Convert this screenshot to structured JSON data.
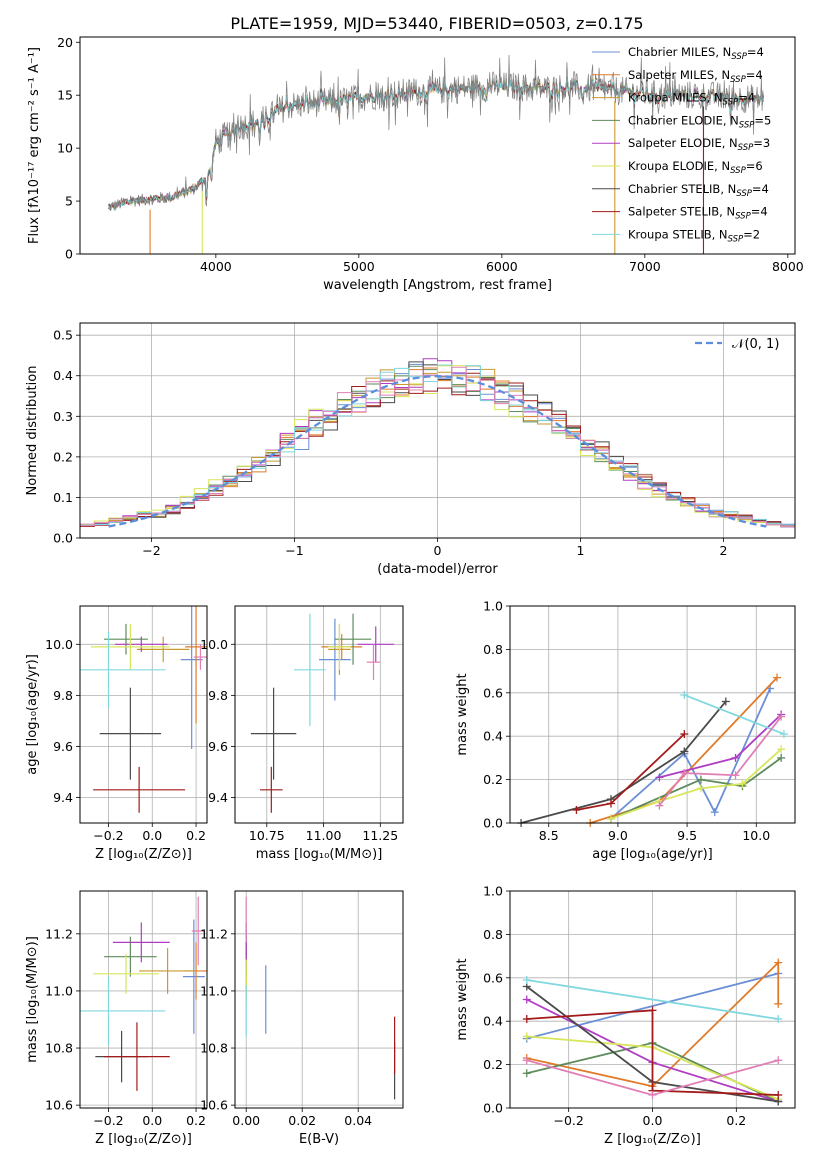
{
  "figure_title": "PLATE=1959, MJD=53440, FIBERID=0503, z=0.175",
  "colors": {
    "Chabrier MILES": "#6b8fd6",
    "Salpeter MILES": "#e07b2a",
    "Kroupa MILES": "#c99a2e",
    "Chabrier ELODIE": "#5e8c5a",
    "Salpeter ELODIE": "#b03cc4",
    "Kroupa ELODIE": "#d7e65a",
    "Chabrier STELIB": "#4a4a4a",
    "Salpeter STELIB": "#a31a1a",
    "Kroupa STELIB": "#80d8df",
    "pink": "#e07fb6",
    "normal": "#5b8fdc",
    "grid": "#b0b0b0",
    "spectrum_gray": "#808080"
  },
  "chart_data": [
    {
      "id": "spectrum",
      "type": "line",
      "xlabel": "wavelength [Angstrom, rest frame]",
      "ylabel": "Flux [fλ10⁻¹⁷ erg cm⁻² s⁻¹ A⁻¹]",
      "xlim": [
        3050,
        8050
      ],
      "ylim": [
        0,
        20.5
      ],
      "xticks": [
        4000,
        5000,
        6000,
        7000,
        8000
      ],
      "yticks": [
        0,
        5,
        10,
        15,
        20
      ],
      "grid": false,
      "legend_position": "top-right",
      "legend": [
        {
          "label": "Chabrier MILES, N",
          "sub": "SSP",
          "suffix": "=4"
        },
        {
          "label": "Salpeter MILES, N",
          "sub": "SSP",
          "suffix": "=4"
        },
        {
          "label": "Kroupa MILES, N",
          "sub": "SSP",
          "suffix": "=4"
        },
        {
          "label": "Chabrier ELODIE, N",
          "sub": "SSP",
          "suffix": "=5"
        },
        {
          "label": "Salpeter ELODIE, N",
          "sub": "SSP",
          "suffix": "=3"
        },
        {
          "label": "Kroupa ELODIE, N",
          "sub": "SSP",
          "suffix": "=6"
        },
        {
          "label": "Chabrier STELIB, N",
          "sub": "SSP",
          "suffix": "=4"
        },
        {
          "label": "Salpeter STELIB, N",
          "sub": "SSP",
          "suffix": "=4"
        },
        {
          "label": "Kroupa STELIB, N",
          "sub": "SSP",
          "suffix": "=2"
        }
      ],
      "continuum": [
        [
          3250,
          4.4
        ],
        [
          3400,
          5.0
        ],
        [
          3550,
          5.2
        ],
        [
          3700,
          5.4
        ],
        [
          3850,
          6.2
        ],
        [
          3950,
          7.5
        ],
        [
          4000,
          10.5
        ],
        [
          4150,
          12.0
        ],
        [
          4300,
          12.5
        ],
        [
          4400,
          13.2
        ],
        [
          4500,
          14.0
        ],
        [
          4700,
          14.3
        ],
        [
          4900,
          14.5
        ],
        [
          5100,
          15.0
        ],
        [
          5300,
          15.2
        ],
        [
          5500,
          15.4
        ],
        [
          5700,
          15.6
        ],
        [
          5900,
          15.9
        ],
        [
          6100,
          15.8
        ],
        [
          6300,
          15.6
        ],
        [
          6500,
          15.7
        ],
        [
          6700,
          15.6
        ],
        [
          6900,
          15.3
        ],
        [
          7100,
          15.0
        ],
        [
          7300,
          15.0
        ],
        [
          7500,
          14.9
        ],
        [
          7700,
          14.7
        ],
        [
          7830,
          14.6
        ]
      ]
    },
    {
      "id": "residuals",
      "type": "histogram",
      "xlabel": "(data-model)/error",
      "ylabel": "Normed distribution",
      "xlim": [
        -2.5,
        2.5
      ],
      "ylim": [
        0,
        0.53
      ],
      "xticks": [
        -2,
        -1,
        0,
        1,
        2
      ],
      "yticks": [
        0.0,
        0.1,
        0.2,
        0.3,
        0.4,
        0.5
      ],
      "grid": true,
      "legend_position": "top-right",
      "legend": [
        "𝒩(0, 1)"
      ],
      "bin_width": 0.1,
      "gaussian": {
        "mu": 0,
        "sigma": 1,
        "x_range": [
          -2.3,
          2.3
        ]
      }
    },
    {
      "id": "age-Z",
      "type": "errorbar",
      "xlabel": "Z [log₁₀(Z/Z⊙)]",
      "ylabel": "age  [log₁₀(age/yr)]",
      "xlim": [
        -0.33,
        0.25
      ],
      "ylim": [
        9.3,
        10.15
      ],
      "xticks": [
        -0.2,
        0.0,
        0.2
      ],
      "yticks": [
        9.4,
        9.6,
        9.8,
        10.0
      ],
      "grid": true,
      "points": [
        {
          "c": "Chabrier MILES",
          "x": 0.18,
          "y": 9.94,
          "ex": 0.05,
          "ey": 0.35
        },
        {
          "c": "Salpeter MILES",
          "x": 0.2,
          "y": 9.99,
          "ex": 0.05,
          "ey": 0.3
        },
        {
          "c": "Kroupa MILES",
          "x": 0.05,
          "y": 9.98,
          "ex": 0.12,
          "ey": 0.05
        },
        {
          "c": "Chabrier ELODIE",
          "x": -0.12,
          "y": 10.02,
          "ex": 0.1,
          "ey": 0.06
        },
        {
          "c": "Salpeter ELODIE",
          "x": -0.05,
          "y": 10.0,
          "ex": 0.12,
          "ey": 0.03
        },
        {
          "c": "Kroupa ELODIE",
          "x": -0.1,
          "y": 9.99,
          "ex": 0.18,
          "ey": 0.09
        },
        {
          "c": "Chabrier STELIB",
          "x": -0.1,
          "y": 9.65,
          "ex": 0.14,
          "ey": 0.18
        },
        {
          "c": "Salpeter STELIB",
          "x": -0.06,
          "y": 9.43,
          "ex": 0.21,
          "ey": 0.09
        },
        {
          "c": "Kroupa STELIB",
          "x": -0.2,
          "y": 9.9,
          "ex": 0.26,
          "ey": 0.15
        },
        {
          "c": "pink",
          "x": 0.22,
          "y": 9.95,
          "ex": 0.03,
          "ey": 0.05
        }
      ]
    },
    {
      "id": "age-mass",
      "type": "errorbar",
      "xlabel": "mass [log₁₀(M/M⊙)]",
      "ylabel": "",
      "xlim": [
        10.61,
        11.35
      ],
      "ylim": [
        9.3,
        10.15
      ],
      "xticks": [
        10.75,
        11.0,
        11.25
      ],
      "yticks": [
        9.4,
        9.6,
        9.8,
        10.0
      ],
      "grid": true,
      "points": [
        {
          "c": "Chabrier MILES",
          "x": 11.05,
          "y": 9.94,
          "ex": 0.07,
          "ey": 0.16
        },
        {
          "c": "Salpeter MILES",
          "x": 11.08,
          "y": 9.99,
          "ex": 0.09,
          "ey": 0.05
        },
        {
          "c": "Kroupa MILES",
          "x": 11.07,
          "y": 9.98,
          "ex": 0.05,
          "ey": 0.1
        },
        {
          "c": "Chabrier ELODIE",
          "x": 11.13,
          "y": 10.02,
          "ex": 0.08,
          "ey": 0.1
        },
        {
          "c": "Salpeter ELODIE",
          "x": 11.23,
          "y": 10.0,
          "ex": 0.08,
          "ey": 0.07
        },
        {
          "c": "Kroupa ELODIE",
          "x": 11.07,
          "y": 9.99,
          "ex": 0.05,
          "ey": 0.09
        },
        {
          "c": "Chabrier STELIB",
          "x": 10.78,
          "y": 9.65,
          "ex": 0.1,
          "ey": 0.18
        },
        {
          "c": "Salpeter STELIB",
          "x": 10.77,
          "y": 9.43,
          "ex": 0.05,
          "ey": 0.09
        },
        {
          "c": "Kroupa STELIB",
          "x": 10.94,
          "y": 9.9,
          "ex": 0.07,
          "ey": 0.22
        },
        {
          "c": "pink",
          "x": 11.22,
          "y": 9.93,
          "ex": 0.03,
          "ey": 0.07
        }
      ]
    },
    {
      "id": "mw-age",
      "type": "line",
      "xlabel": "age  [log₁₀(age/yr)]",
      "ylabel": "mass weight",
      "xlim": [
        8.22,
        10.28
      ],
      "ylim": [
        0,
        1.0
      ],
      "xticks": [
        8.5,
        9.0,
        9.5,
        10.0
      ],
      "yticks": [
        0.0,
        0.2,
        0.4,
        0.6,
        0.8,
        1.0
      ],
      "grid": true,
      "series": [
        {
          "c": "Chabrier MILES",
          "x": [
            8.95,
            9.48,
            9.7,
            10.1
          ],
          "y": [
            0.02,
            0.32,
            0.05,
            0.62
          ]
        },
        {
          "c": "Salpeter MILES",
          "x": [
            8.8,
            9.3,
            10.15
          ],
          "y": [
            0.0,
            0.1,
            0.67
          ]
        },
        {
          "c": "Chabrier ELODIE",
          "x": [
            8.95,
            9.6,
            9.9,
            10.18
          ],
          "y": [
            0.02,
            0.2,
            0.17,
            0.3
          ]
        },
        {
          "c": "Salpeter ELODIE",
          "x": [
            9.3,
            9.85,
            10.18
          ],
          "y": [
            0.21,
            0.3,
            0.5
          ]
        },
        {
          "c": "Kroupa ELODIE",
          "x": [
            8.95,
            9.3,
            9.6,
            9.9,
            10.18
          ],
          "y": [
            0.02,
            0.1,
            0.16,
            0.18,
            0.34
          ]
        },
        {
          "c": "Chabrier STELIB",
          "x": [
            8.3,
            8.95,
            9.48,
            9.78
          ],
          "y": [
            0.0,
            0.11,
            0.33,
            0.56
          ]
        },
        {
          "c": "Salpeter STELIB",
          "x": [
            8.7,
            8.95,
            9.48
          ],
          "y": [
            0.06,
            0.09,
            0.41
          ]
        },
        {
          "c": "Kroupa STELIB",
          "x": [
            9.48,
            10.2
          ],
          "y": [
            0.59,
            0.41
          ]
        },
        {
          "c": "pink",
          "x": [
            9.3,
            9.48,
            9.85,
            10.18
          ],
          "y": [
            0.08,
            0.23,
            0.22,
            0.49
          ]
        }
      ]
    },
    {
      "id": "mass-Z",
      "type": "errorbar",
      "xlabel": "Z [log₁₀(Z/Z⊙)]",
      "ylabel": "mass [log₁₀(M/M⊙)]",
      "xlim": [
        -0.33,
        0.25
      ],
      "ylim": [
        10.59,
        11.35
      ],
      "xticks": [
        -0.2,
        0.0,
        0.2
      ],
      "yticks": [
        10.6,
        10.8,
        11.0,
        11.2
      ],
      "grid": true,
      "points": [
        {
          "c": "Chabrier MILES",
          "x": 0.19,
          "y": 11.05,
          "ex": 0.05,
          "ey": 0.2
        },
        {
          "c": "Salpeter MILES",
          "x": 0.2,
          "y": 11.07,
          "ex": 0.05,
          "ey": 0.1
        },
        {
          "c": "Kroupa MILES",
          "x": 0.07,
          "y": 11.07,
          "ex": 0.13,
          "ey": 0.08
        },
        {
          "c": "Chabrier ELODIE",
          "x": -0.1,
          "y": 11.12,
          "ex": 0.12,
          "ey": 0.07
        },
        {
          "c": "Salpeter ELODIE",
          "x": -0.05,
          "y": 11.17,
          "ex": 0.13,
          "ey": 0.07
        },
        {
          "c": "Kroupa ELODIE",
          "x": -0.12,
          "y": 11.06,
          "ex": 0.15,
          "ey": 0.07
        },
        {
          "c": "Chabrier STELIB",
          "x": -0.14,
          "y": 10.77,
          "ex": 0.12,
          "ey": 0.09
        },
        {
          "c": "Salpeter STELIB",
          "x": -0.07,
          "y": 10.77,
          "ex": 0.15,
          "ey": 0.12
        },
        {
          "c": "Kroupa STELIB",
          "x": -0.2,
          "y": 10.93,
          "ex": 0.26,
          "ey": 0.12
        },
        {
          "c": "pink",
          "x": 0.21,
          "y": 11.21,
          "ex": 0.03,
          "ey": 0.12
        }
      ]
    },
    {
      "id": "mass-EBV",
      "type": "errorbar",
      "xlabel": "E(B-V)",
      "ylabel": "",
      "xlim": [
        -0.004,
        0.056
      ],
      "ylim": [
        10.59,
        11.35
      ],
      "xticks": [
        0.0,
        0.02,
        0.04
      ],
      "yticks": [
        10.6,
        10.8,
        11.0,
        11.2
      ],
      "grid": true,
      "points": [
        {
          "c": "Chabrier MILES",
          "x": 0.007,
          "y": 10.97,
          "ex": 0,
          "ey": 0.12
        },
        {
          "c": "Salpeter MILES",
          "x": 0.0,
          "y": 11.07,
          "ex": 0,
          "ey": 0.1
        },
        {
          "c": "Kroupa MILES",
          "x": 0.0,
          "y": 11.07,
          "ex": 0,
          "ey": 0.08
        },
        {
          "c": "Chabrier ELODIE",
          "x": 0.0,
          "y": 11.12,
          "ex": 0,
          "ey": 0.07
        },
        {
          "c": "Salpeter ELODIE",
          "x": 0.0,
          "y": 11.17,
          "ex": 0,
          "ey": 0.07
        },
        {
          "c": "Kroupa ELODIE",
          "x": 0.0,
          "y": 11.03,
          "ex": 0,
          "ey": 0.08
        },
        {
          "c": "Chabrier STELIB",
          "x": 0.053,
          "y": 10.72,
          "ex": 0,
          "ey": 0.1
        },
        {
          "c": "Salpeter STELIB",
          "x": 0.053,
          "y": 10.81,
          "ex": 0,
          "ey": 0.1
        },
        {
          "c": "Kroupa STELIB",
          "x": 0.0,
          "y": 10.93,
          "ex": 0,
          "ey": 0.09
        },
        {
          "c": "pink",
          "x": 0.0,
          "y": 11.25,
          "ex": 0,
          "ey": 0.08
        }
      ]
    },
    {
      "id": "mw-Z",
      "type": "line",
      "xlabel": "Z [log₁₀(Z/Z⊙)]",
      "ylabel": "mass weight",
      "xlim": [
        -0.34,
        0.34
      ],
      "ylim": [
        0,
        1.0
      ],
      "xticks": [
        -0.2,
        0.0,
        0.2
      ],
      "yticks": [
        0.0,
        0.2,
        0.4,
        0.6,
        0.8,
        1.0
      ],
      "grid": true,
      "series": [
        {
          "c": "Chabrier MILES",
          "x": [
            -0.3,
            0.3
          ],
          "y": [
            0.32,
            0.62
          ]
        },
        {
          "c": "Salpeter MILES",
          "x": [
            -0.3,
            0.0,
            0.3,
            0.3
          ],
          "y": [
            0.23,
            0.1,
            0.67,
            0.48
          ]
        },
        {
          "c": "Chabrier ELODIE",
          "x": [
            -0.3,
            0.0,
            0.3
          ],
          "y": [
            0.16,
            0.3,
            0.03
          ]
        },
        {
          "c": "Salpeter ELODIE",
          "x": [
            -0.3,
            0.0,
            0.3
          ],
          "y": [
            0.5,
            0.21,
            0.03
          ]
        },
        {
          "c": "Kroupa ELODIE",
          "x": [
            -0.3,
            0.0,
            0.3
          ],
          "y": [
            0.33,
            0.28,
            0.04
          ]
        },
        {
          "c": "Chabrier STELIB",
          "x": [
            -0.3,
            0.0,
            0.3
          ],
          "y": [
            0.56,
            0.12,
            0.03
          ]
        },
        {
          "c": "Salpeter STELIB",
          "x": [
            -0.3,
            0.0,
            0.0,
            0.3
          ],
          "y": [
            0.41,
            0.45,
            0.08,
            0.06
          ]
        },
        {
          "c": "Kroupa STELIB",
          "x": [
            -0.3,
            0.3
          ],
          "y": [
            0.59,
            0.41
          ]
        },
        {
          "c": "pink",
          "x": [
            -0.3,
            0.0,
            0.3
          ],
          "y": [
            0.22,
            0.06,
            0.22
          ]
        }
      ]
    }
  ]
}
